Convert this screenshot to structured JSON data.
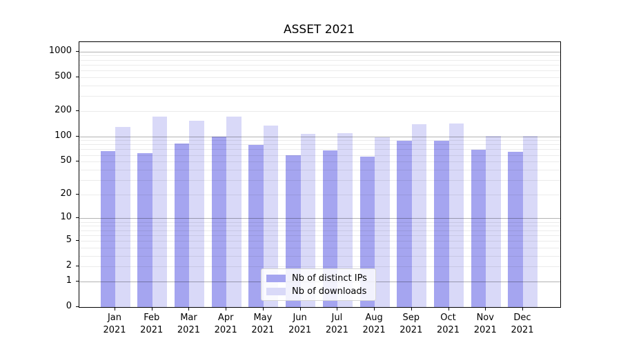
{
  "chart_data": {
    "type": "bar",
    "title": "ASSET 2021",
    "year_suffix": "2021",
    "categories": [
      "Jan",
      "Feb",
      "Mar",
      "Apr",
      "May",
      "Jun",
      "Jul",
      "Aug",
      "Sep",
      "Oct",
      "Nov",
      "Dec"
    ],
    "series": [
      {
        "name": "Nb of distinct IPs",
        "color": "#a5a5f0",
        "values": [
          67,
          63,
          82,
          100,
          79,
          60,
          68,
          57,
          88,
          89,
          70,
          65
        ]
      },
      {
        "name": "Nb of downloads",
        "color": "#d9d9f8",
        "values": [
          130,
          170,
          154,
          170,
          134,
          108,
          109,
          98,
          139,
          143,
          102,
          102
        ]
      }
    ],
    "y_ticks": [
      0,
      1,
      2,
      5,
      10,
      20,
      50,
      100,
      200,
      500,
      1000
    ],
    "y_major_gridlines": [
      1,
      10,
      100,
      1000
    ],
    "scale": "log1p",
    "ylim": [
      0,
      1290
    ],
    "xlabel": "",
    "ylabel": "",
    "grid": true,
    "legend_position": "lower center",
    "colors": {
      "major_grid": "rgba(0,0,0,0.30)",
      "minor_grid": "rgba(0,0,0,0.08)",
      "axis": "#000000",
      "background": "#ffffff"
    }
  }
}
